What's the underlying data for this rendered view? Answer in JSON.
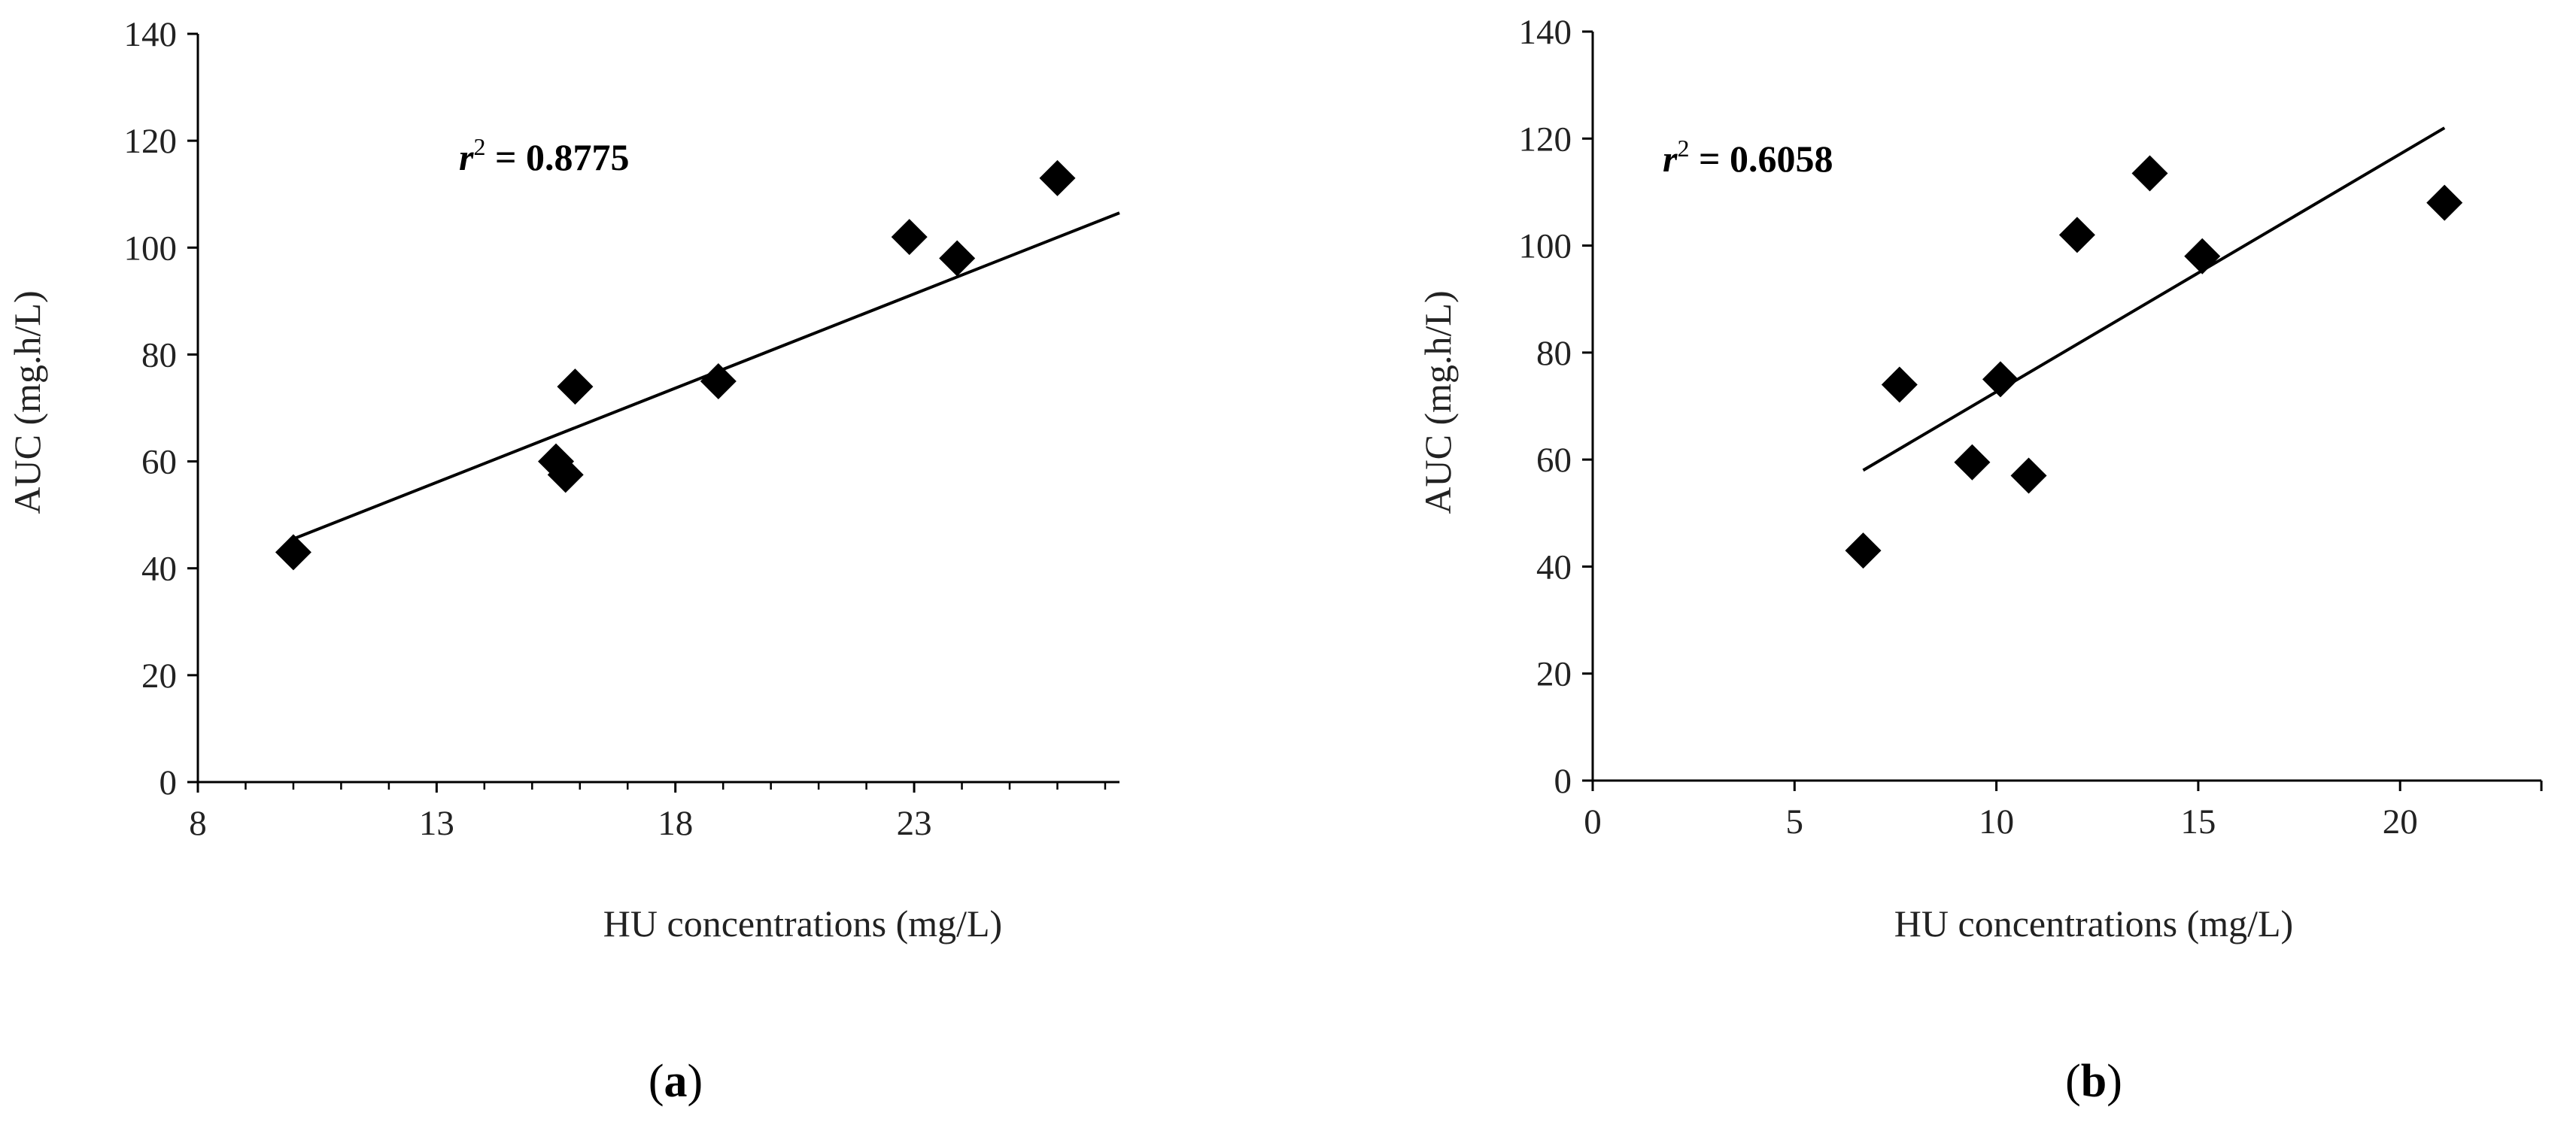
{
  "chart_data": [
    {
      "type": "scatter",
      "panel": "a",
      "title": "",
      "xlabel": "HU concentrations (mg/L)",
      "ylabel": "AUC (mg.h/L)",
      "xlim": [
        8,
        27.3
      ],
      "ylim": [
        0,
        140
      ],
      "xticks": [
        "8",
        "13",
        "18",
        "23"
      ],
      "xtick_values": [
        8,
        13,
        18,
        23
      ],
      "xminor_step": 1,
      "yticks": [
        "0",
        "20",
        "40",
        "60",
        "80",
        "100",
        "120",
        "140"
      ],
      "ytick_values": [
        0,
        20,
        40,
        60,
        80,
        100,
        120,
        140
      ],
      "annotation": {
        "r": "r",
        "sup": "2",
        "text": " = 0.8775"
      },
      "points": [
        {
          "x": 10.0,
          "y": 43
        },
        {
          "x": 15.5,
          "y": 60
        },
        {
          "x": 15.7,
          "y": 57.5
        },
        {
          "x": 15.9,
          "y": 74
        },
        {
          "x": 18.9,
          "y": 75
        },
        {
          "x": 22.9,
          "y": 102
        },
        {
          "x": 23.9,
          "y": 98
        },
        {
          "x": 26.0,
          "y": 113
        }
      ],
      "trendline": {
        "x": [
          10.0,
          27.3
        ],
        "y": [
          45.5,
          106.5
        ]
      },
      "grid": false,
      "panel_label": "a",
      "marker_color": "#000000"
    },
    {
      "type": "scatter",
      "panel": "b",
      "title": "",
      "xlabel": "HU concentrations (mg/L)",
      "ylabel": "AUC (mg.h/L)",
      "xlim": [
        0,
        23.5
      ],
      "ylim": [
        0,
        140
      ],
      "xticks": [
        "0",
        "5",
        "10",
        "15",
        "20"
      ],
      "xtick_values": [
        0,
        5,
        10,
        15,
        20
      ],
      "xminor_step": null,
      "yticks": [
        "0",
        "20",
        "40",
        "60",
        "80",
        "100",
        "120",
        "140"
      ],
      "ytick_values": [
        0,
        20,
        40,
        60,
        80,
        100,
        120,
        140
      ],
      "annotation": {
        "r": "r",
        "sup": "2",
        "text": " = 0.6058"
      },
      "points": [
        {
          "x": 6.7,
          "y": 43
        },
        {
          "x": 7.6,
          "y": 74
        },
        {
          "x": 9.4,
          "y": 59.5
        },
        {
          "x": 10.1,
          "y": 75
        },
        {
          "x": 10.8,
          "y": 57
        },
        {
          "x": 12.0,
          "y": 102
        },
        {
          "x": 13.8,
          "y": 113.5
        },
        {
          "x": 15.1,
          "y": 98
        },
        {
          "x": 21.1,
          "y": 108
        }
      ],
      "trendline": {
        "x": [
          6.7,
          21.1
        ],
        "y": [
          58,
          122
        ]
      },
      "grid": false,
      "panel_label": "b",
      "marker_color": "#000000"
    }
  ]
}
